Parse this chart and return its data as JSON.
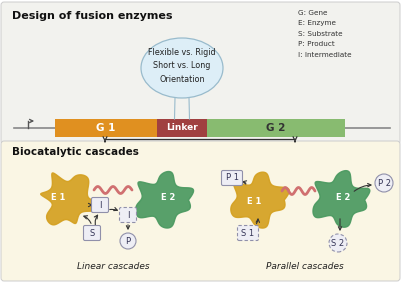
{
  "title_top": "Design of fusion enzymes",
  "title_bottom": "Biocatalytic cascades",
  "bg_top": "#f2f2ee",
  "bg_bottom": "#faf6e4",
  "legend_items": [
    "G: Gene",
    "E: Enzyme",
    "S: Substrate",
    "P: Product",
    "I: Intermediate"
  ],
  "g1_color": "#e09020",
  "linker_color": "#a04040",
  "g2_color": "#88bb70",
  "enzyme1_color": "#d4a020",
  "enzyme2_color": "#4a9960",
  "balloon_bg": "#ddeef7",
  "balloon_edge": "#99bbcc",
  "balloon_text": "Flexible vs. Rigid\nShort vs. Long\nOrientation",
  "linker_wave_color": "#d07070",
  "box_face": "#eeeef5",
  "box_edge": "#9090aa",
  "linear_label": "Linear cascades",
  "parallel_label": "Parallel cascades"
}
